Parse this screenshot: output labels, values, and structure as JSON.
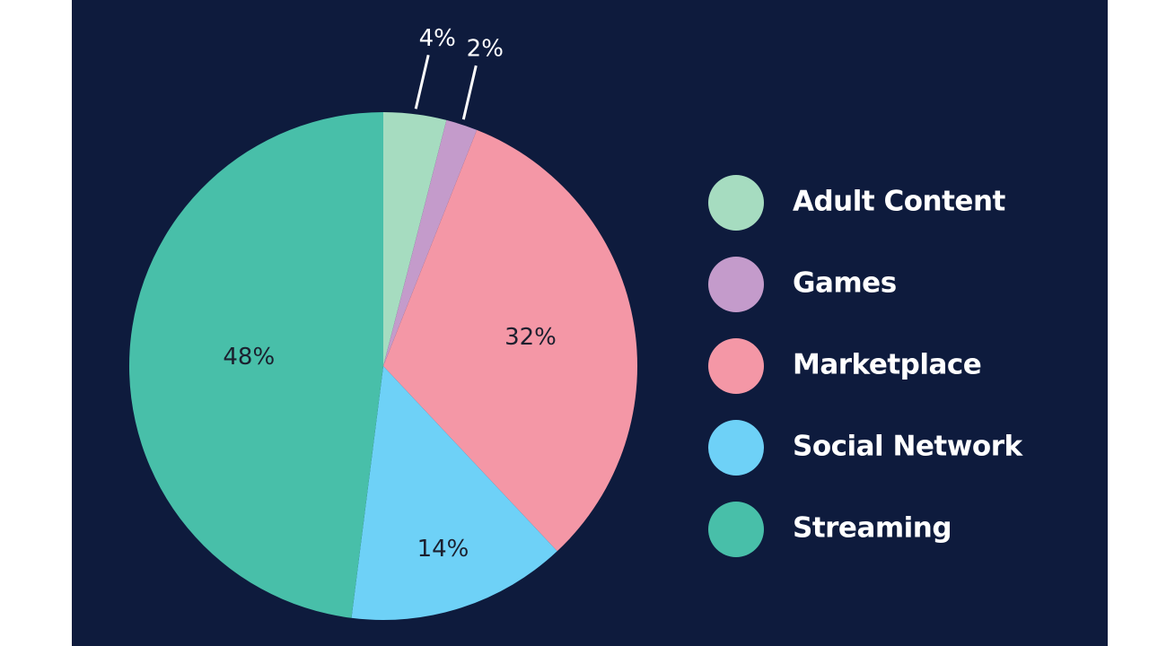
{
  "chart_data": {
    "type": "pie",
    "title": "",
    "start_angle_deg": 0,
    "direction": "clockwise",
    "legend_position": "right",
    "slices": [
      {
        "name": "Adult Content",
        "value": 4,
        "label": "4%",
        "color": "#a6dcc0",
        "label_placement": "outside"
      },
      {
        "name": "Games",
        "value": 2,
        "label": "2%",
        "color": "#c49bcb",
        "label_placement": "outside"
      },
      {
        "name": "Marketplace",
        "value": 32,
        "label": "32%",
        "color": "#f497a6",
        "label_placement": "inside"
      },
      {
        "name": "Social Network",
        "value": 14,
        "label": "14%",
        "color": "#6ed1f7",
        "label_placement": "inside"
      },
      {
        "name": "Streaming",
        "value": 48,
        "label": "48%",
        "color": "#48bfa9",
        "label_placement": "inside"
      }
    ]
  },
  "colors": {
    "background": "#0e1b3d",
    "label_dark": "#1b1f2e",
    "label_light": "#ffffff"
  }
}
